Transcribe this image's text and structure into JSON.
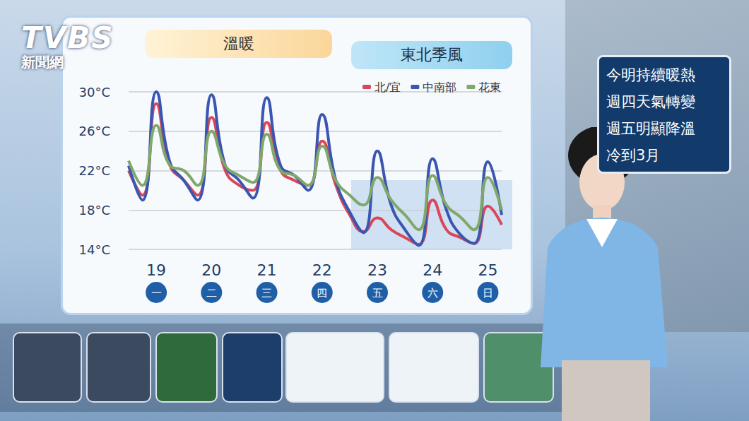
{
  "chart_data": {
    "type": "line",
    "title": null,
    "periods": [
      "溫暖",
      "東北季風"
    ],
    "categories": [
      null,
      null,
      "19",
      null,
      null,
      null,
      "20",
      null,
      null,
      null,
      "21",
      null,
      null,
      null,
      "22",
      null,
      null,
      null,
      "23",
      null,
      null,
      null,
      "24",
      null,
      null,
      null,
      "25",
      null
    ],
    "weekdays": [
      "一",
      "二",
      "三",
      "四",
      "五",
      "六",
      "日"
    ],
    "series": [
      {
        "name": "北/宜",
        "color": "#d9485a",
        "values": [
          22,
          19.5,
          28.8,
          22.5,
          21,
          19.5,
          27.4,
          22,
          20.5,
          20,
          26.9,
          22,
          21,
          20.5,
          25,
          20.5,
          17.5,
          15.8,
          17.2,
          16,
          15.2,
          14.5,
          19,
          16,
          15.2,
          14.6,
          18.4,
          16.5
        ]
      },
      {
        "name": "中南部",
        "color": "#3a56b0",
        "values": [
          22.5,
          19,
          30,
          22.8,
          21,
          19,
          29.7,
          22.5,
          21,
          19.2,
          29.4,
          22.5,
          21.5,
          20,
          27.7,
          21,
          17.8,
          15.7,
          24,
          18.5,
          16,
          14.4,
          23.2,
          18,
          15.5,
          14.6,
          22.9,
          17.5
        ]
      },
      {
        "name": "花東",
        "color": "#7fa86a",
        "values": [
          23,
          20.5,
          26.6,
          22.5,
          22,
          20.5,
          26,
          22.5,
          21.5,
          20.8,
          25.7,
          22,
          21.5,
          20.5,
          24.5,
          21,
          19.5,
          18.5,
          21.3,
          19,
          17.5,
          16,
          21.5,
          18.5,
          17.3,
          16,
          21.3,
          18
        ]
      }
    ],
    "ylim": [
      14,
      30
    ],
    "yticks": [
      {
        "value": 14,
        "label": "14°C"
      },
      {
        "value": 18,
        "label": "18°C"
      },
      {
        "value": 22,
        "label": "22°C"
      },
      {
        "value": 26,
        "label": "26°C"
      },
      {
        "value": 30,
        "label": "30°C"
      }
    ],
    "grid": true,
    "legend": "top"
  },
  "logo": {
    "brand": "TVBS",
    "sub": "新聞網"
  },
  "note": [
    "今明持續暖熱",
    "週四天氣轉變",
    "週五明顯降溫",
    "冷到3月"
  ]
}
